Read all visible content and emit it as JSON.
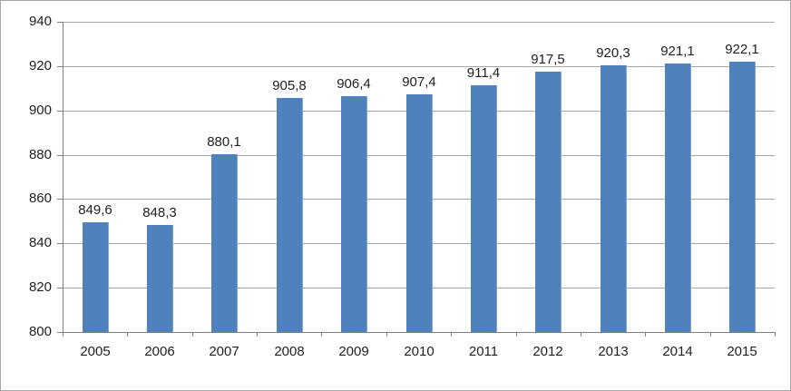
{
  "chart_data": {
    "type": "bar",
    "title": "",
    "xlabel": "",
    "ylabel": "",
    "categories": [
      "2005",
      "2006",
      "2007",
      "2008",
      "2009",
      "2010",
      "2011",
      "2012",
      "2013",
      "2014",
      "2015"
    ],
    "values": [
      849.6,
      848.3,
      880.1,
      905.8,
      906.4,
      907.4,
      911.4,
      917.5,
      920.3,
      921.1,
      922.1
    ],
    "value_labels": [
      "849,6",
      "848,3",
      "880,1",
      "905,8",
      "906,4",
      "907,4",
      "911,4",
      "917,5",
      "920,3",
      "921,1",
      "922,1"
    ],
    "ylim": [
      800,
      940
    ],
    "yticks": [
      800,
      820,
      840,
      860,
      880,
      900,
      920,
      940
    ],
    "grid": true,
    "legend": false,
    "colors": {
      "bar": "#4F81BD",
      "bar_edge": "#7FA5D2",
      "gridline": "#A6A6A6",
      "axis": "#808080",
      "text": "#1F1F1F",
      "frame_border": "#A6A6A6",
      "background": "#FFFFFF"
    }
  }
}
